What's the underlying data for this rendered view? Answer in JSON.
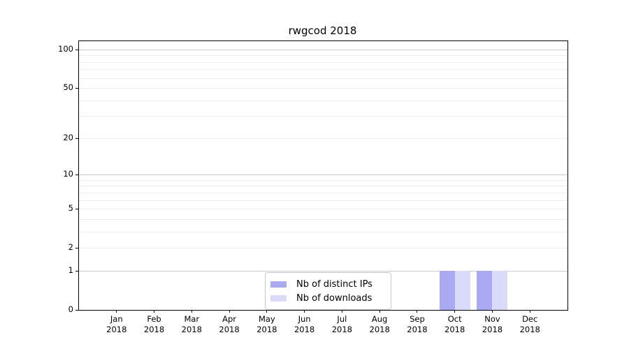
{
  "figure": {
    "background": "#ffffff"
  },
  "chart_data": {
    "type": "bar",
    "title": "rwgcod 2018",
    "categories": [
      "Jan",
      "Feb",
      "Mar",
      "Apr",
      "May",
      "Jun",
      "Jul",
      "Aug",
      "Sep",
      "Oct",
      "Nov",
      "Dec"
    ],
    "years": [
      "2018",
      "2018",
      "2018",
      "2018",
      "2018",
      "2018",
      "2018",
      "2018",
      "2018",
      "2018",
      "2018",
      "2018"
    ],
    "series": [
      {
        "name": "Nb of distinct IPs",
        "color": "#aaaaf2",
        "values": [
          0,
          0,
          0,
          0,
          0,
          0,
          0,
          0,
          0,
          1,
          1,
          0
        ]
      },
      {
        "name": "Nb of downloads",
        "color": "#dadaf9",
        "values": [
          0,
          0,
          0,
          0,
          0,
          0,
          0,
          0,
          0,
          1,
          1,
          0
        ]
      }
    ],
    "yscale": "log1p",
    "ylim": [
      0,
      100
    ],
    "ytick_values": [
      0,
      1,
      2,
      5,
      10,
      20,
      50,
      100
    ],
    "decade_gridlines": [
      1,
      10,
      100
    ],
    "minor_gridlines": [
      2,
      3,
      4,
      5,
      6,
      7,
      8,
      9,
      20,
      30,
      40,
      50,
      60,
      70,
      80,
      90
    ],
    "grid_color_major": "#c9c9c9",
    "grid_color_minor": "#ebebeb",
    "axis_color": "#000000",
    "legend_position": "lower center",
    "grid": true
  },
  "legend": {
    "items": [
      {
        "label": "Nb of distinct IPs",
        "color": "#aaaaf2"
      },
      {
        "label": "Nb of downloads",
        "color": "#dadaf9"
      }
    ]
  }
}
